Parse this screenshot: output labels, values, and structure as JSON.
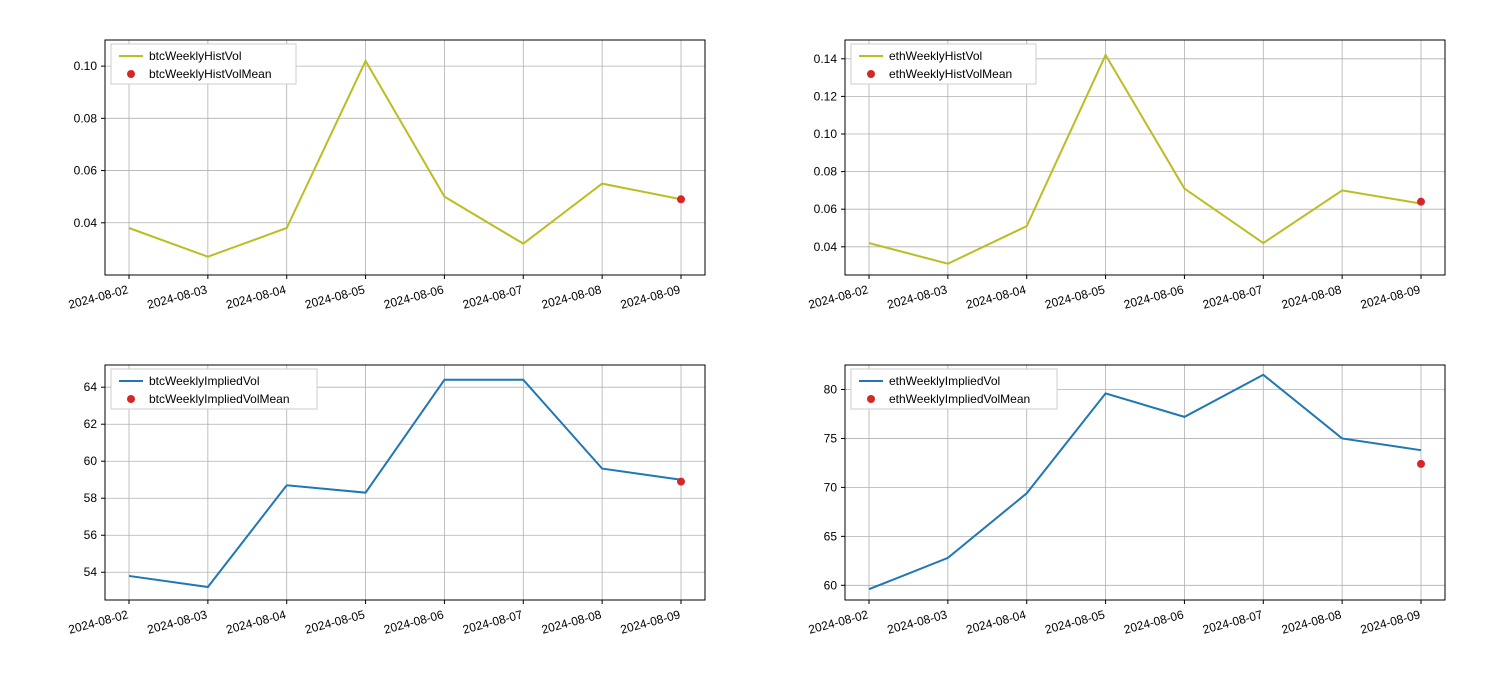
{
  "global": {
    "background_color": "#ffffff",
    "grid_color": "#b0b0b0",
    "axis_color": "#000000",
    "font_family": "sans-serif",
    "tick_fontsize": 12,
    "legend_fontsize": 12,
    "x_categories": [
      "2024-08-02",
      "2024-08-03",
      "2024-08-04",
      "2024-08-05",
      "2024-08-06",
      "2024-08-07",
      "2024-08-08",
      "2024-08-09"
    ],
    "xtick_rotation_deg": 15
  },
  "panels": [
    {
      "id": "btc-hist",
      "type": "line",
      "line_label": "btcWeeklyHistVol",
      "point_label": "btcWeeklyHistVolMean",
      "line_color": "#bcbd22",
      "point_color": "#d62728",
      "line_width": 2,
      "marker_size": 6,
      "y_values": [
        0.038,
        0.027,
        0.038,
        0.102,
        0.05,
        0.032,
        0.055,
        0.049
      ],
      "mean_x_index": 7,
      "mean_y": 0.049,
      "ylim": [
        0.02,
        0.11
      ],
      "yticks": [
        0.04,
        0.06,
        0.08,
        0.1
      ],
      "ytick_labels": [
        "0.04",
        "0.06",
        "0.08",
        "0.10"
      ],
      "grid": true,
      "legend_pos": "upper-left"
    },
    {
      "id": "eth-hist",
      "type": "line",
      "line_label": "ethWeeklyHistVol",
      "point_label": "ethWeeklyHistVolMean",
      "line_color": "#bcbd22",
      "point_color": "#d62728",
      "line_width": 2,
      "marker_size": 6,
      "y_values": [
        0.042,
        0.031,
        0.051,
        0.142,
        0.071,
        0.042,
        0.07,
        0.063
      ],
      "mean_x_index": 7,
      "mean_y": 0.064,
      "ylim": [
        0.025,
        0.15
      ],
      "yticks": [
        0.04,
        0.06,
        0.08,
        0.1,
        0.12,
        0.14
      ],
      "ytick_labels": [
        "0.04",
        "0.06",
        "0.08",
        "0.10",
        "0.12",
        "0.14"
      ],
      "grid": true,
      "legend_pos": "upper-left"
    },
    {
      "id": "btc-implied",
      "type": "line",
      "line_label": "btcWeeklyImpliedVol",
      "point_label": "btcWeeklyImpliedVolMean",
      "line_color": "#1f77b4",
      "point_color": "#d62728",
      "line_width": 2,
      "marker_size": 6,
      "y_values": [
        53.8,
        53.2,
        58.7,
        58.3,
        64.4,
        64.4,
        59.6,
        59.0
      ],
      "mean_x_index": 7,
      "mean_y": 58.9,
      "ylim": [
        52.5,
        65.2
      ],
      "yticks": [
        54,
        56,
        58,
        60,
        62,
        64
      ],
      "ytick_labels": [
        "54",
        "56",
        "58",
        "60",
        "62",
        "64"
      ],
      "grid": true,
      "legend_pos": "upper-left"
    },
    {
      "id": "eth-implied",
      "type": "line",
      "line_label": "ethWeeklyImpliedVol",
      "point_label": "ethWeeklyImpliedVolMean",
      "line_color": "#1f77b4",
      "point_color": "#d62728",
      "line_width": 2,
      "marker_size": 6,
      "y_values": [
        59.6,
        62.8,
        69.4,
        79.6,
        77.2,
        81.5,
        75.0,
        73.8
      ],
      "mean_x_index": 7,
      "mean_y": 72.4,
      "ylim": [
        58.5,
        82.5
      ],
      "yticks": [
        60,
        65,
        70,
        75,
        80
      ],
      "ytick_labels": [
        "60",
        "65",
        "70",
        "75",
        "80"
      ],
      "grid": true,
      "legend_pos": "upper-left"
    }
  ]
}
